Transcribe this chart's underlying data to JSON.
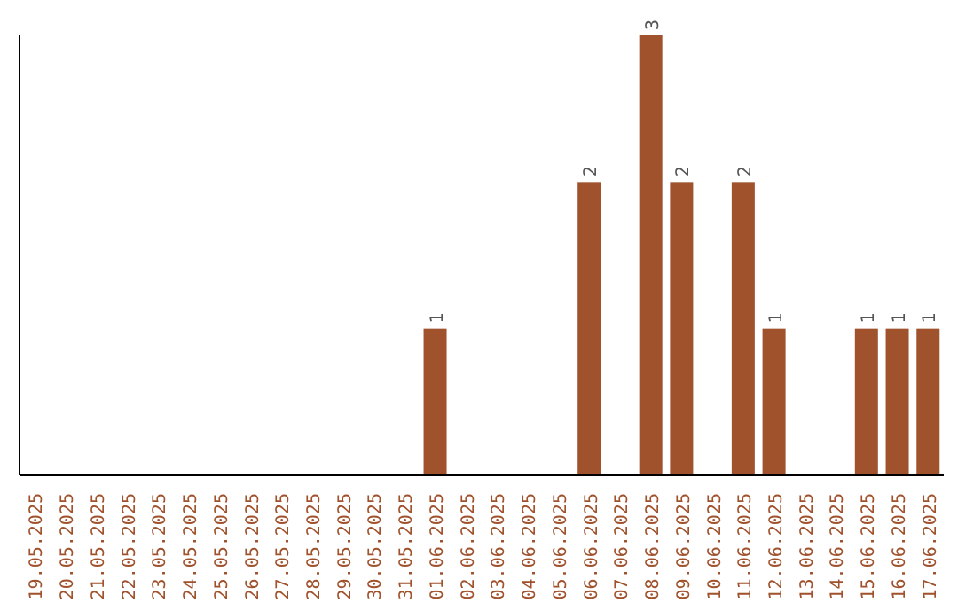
{
  "chart_data": {
    "type": "bar",
    "categories": [
      "19.05.2025",
      "20.05.2025",
      "21.05.2025",
      "22.05.2025",
      "23.05.2025",
      "24.05.2025",
      "25.05.2025",
      "26.05.2025",
      "27.05.2025",
      "28.05.2025",
      "29.05.2025",
      "30.05.2025",
      "31.05.2025",
      "01.06.2025",
      "02.06.2025",
      "03.06.2025",
      "04.06.2025",
      "05.06.2025",
      "06.06.2025",
      "07.06.2025",
      "08.06.2025",
      "09.06.2025",
      "10.06.2025",
      "11.06.2025",
      "12.06.2025",
      "13.06.2025",
      "14.06.2025",
      "15.06.2025",
      "16.06.2025",
      "17.06.2025"
    ],
    "values": [
      null,
      null,
      null,
      null,
      null,
      null,
      null,
      null,
      null,
      null,
      null,
      null,
      null,
      1,
      null,
      null,
      null,
      null,
      2,
      null,
      3,
      2,
      null,
      2,
      1,
      null,
      null,
      1,
      1,
      1
    ],
    "data_labels": true,
    "color": "#a0522d",
    "tick_labels": "x",
    "grid": false,
    "legend": false
  }
}
